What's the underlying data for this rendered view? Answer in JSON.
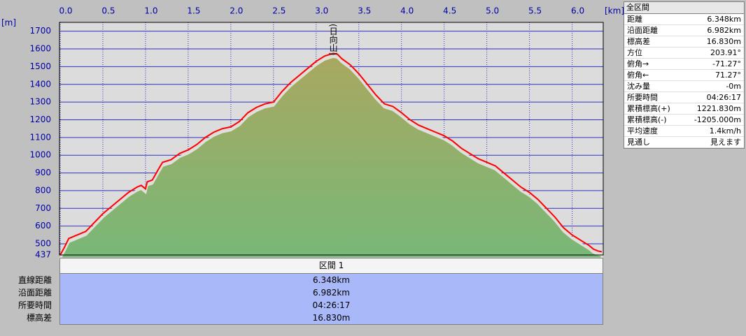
{
  "chart_data": {
    "type": "line",
    "x_unit": "[km]",
    "y_unit": "[m]",
    "annotation": "(日向山)",
    "x": [
      0,
      0.05,
      0.1,
      0.2,
      0.3,
      0.4,
      0.5,
      0.6,
      0.7,
      0.8,
      0.9,
      0.95,
      1.0,
      1.02,
      1.08,
      1.15,
      1.2,
      1.3,
      1.4,
      1.5,
      1.6,
      1.7,
      1.8,
      1.9,
      2.0,
      2.1,
      2.2,
      2.3,
      2.4,
      2.5,
      2.6,
      2.7,
      2.8,
      2.9,
      3.0,
      3.1,
      3.2,
      3.25,
      3.3,
      3.4,
      3.5,
      3.6,
      3.7,
      3.8,
      3.9,
      4.0,
      4.1,
      4.2,
      4.3,
      4.4,
      4.5,
      4.6,
      4.7,
      4.8,
      4.9,
      5.0,
      5.1,
      5.2,
      5.3,
      5.4,
      5.5,
      5.6,
      5.7,
      5.8,
      5.9,
      6.0,
      6.1,
      6.2,
      6.25,
      6.3,
      6.348
    ],
    "series": [
      {
        "color": "#ff0000",
        "values": [
          437,
          480,
          530,
          550,
          570,
          620,
          670,
          710,
          750,
          790,
          820,
          830,
          810,
          850,
          860,
          920,
          960,
          975,
          1010,
          1030,
          1060,
          1100,
          1130,
          1150,
          1160,
          1190,
          1240,
          1270,
          1290,
          1300,
          1360,
          1410,
          1450,
          1490,
          1530,
          1560,
          1575,
          1570,
          1545,
          1510,
          1460,
          1400,
          1340,
          1290,
          1275,
          1240,
          1200,
          1170,
          1150,
          1130,
          1110,
          1080,
          1040,
          1010,
          980,
          960,
          940,
          900,
          860,
          820,
          790,
          750,
          700,
          650,
          590,
          550,
          520,
          490,
          470,
          460,
          455
        ]
      }
    ],
    "xlim": [
      0,
      6.348
    ],
    "ylim": [
      437,
      1750
    ],
    "xticks": [
      {
        "value": 0,
        "label": "0.0"
      },
      0.5,
      {
        "value": 1,
        "label": "1.0"
      },
      1.5,
      {
        "value": 2,
        "label": "2.0"
      },
      2.5,
      {
        "value": 3,
        "label": "3.0"
      },
      3.5,
      {
        "value": 4,
        "label": "4.0"
      },
      4.5,
      {
        "value": 5,
        "label": "5.0"
      },
      5.5,
      {
        "value": 6,
        "label": "6.0"
      }
    ],
    "yticks": [
      437,
      500,
      600,
      700,
      800,
      900,
      1000,
      1100,
      1200,
      1300,
      1400,
      1500,
      1600,
      1700
    ],
    "grid": true
  },
  "summary_panel": {
    "title": "全区間",
    "rows": [
      [
        "距離",
        "6.348km"
      ],
      [
        "沿面距離",
        "6.982km"
      ],
      [
        "標高差",
        "16.830m"
      ],
      [
        "方位",
        "203.91°"
      ],
      [
        "俯角→",
        "-71.27°"
      ],
      [
        "俯角←",
        "71.27°"
      ],
      [
        "沈み量",
        "-0m"
      ],
      [
        "所要時間",
        "04:26:17"
      ],
      [
        "累積標高(+)",
        "1221.830m"
      ],
      [
        "累積標高(-)",
        "-1205.000m"
      ],
      [
        "平均速度",
        "1.4km/h"
      ],
      [
        "見通し",
        "見えます"
      ]
    ]
  },
  "section_table": {
    "header": "区間 1",
    "rows": [
      [
        "直線距離",
        "6.348km"
      ],
      [
        "沿面距離",
        "6.982km"
      ],
      [
        "所要時間",
        "04:26:17"
      ],
      [
        "標高差",
        "16.830m"
      ]
    ]
  }
}
